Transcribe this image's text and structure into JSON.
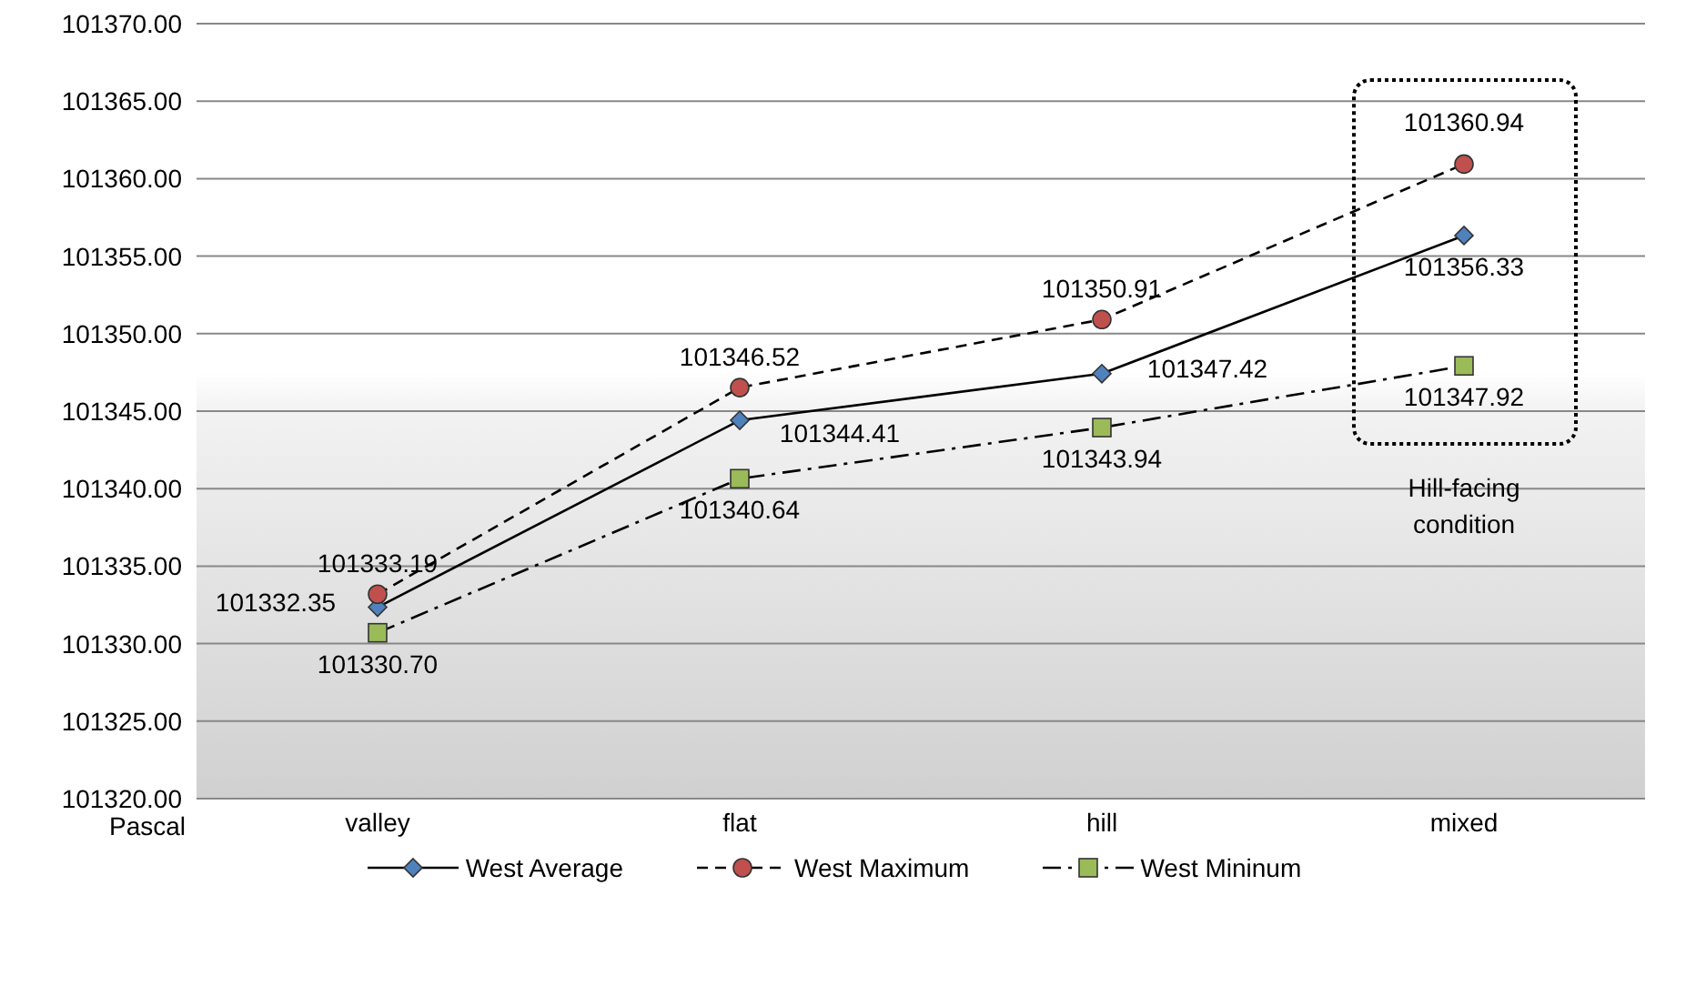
{
  "chart_data": {
    "type": "line",
    "ylabel": "Pascal",
    "categories": [
      "valley",
      "flat",
      "hill",
      "mixed"
    ],
    "series": [
      {
        "name": "West Average",
        "color": "#4f81bd",
        "marker": "diamond",
        "line_style": "solid",
        "values": [
          101332.35,
          101344.41,
          101347.42,
          101356.33
        ],
        "value_labels": [
          "101332.35",
          "101344.41",
          "101347.42",
          "101356.33"
        ]
      },
      {
        "name": "West Maximum",
        "color": "#c0504d",
        "marker": "circle",
        "line_style": "dashed",
        "values": [
          101333.19,
          101346.52,
          101350.91,
          101360.94
        ],
        "value_labels": [
          "101333.19",
          "101346.52",
          "101350.91",
          "101360.94"
        ]
      },
      {
        "name": "West Mininum",
        "color": "#9bbb59",
        "marker": "square",
        "line_style": "dashdot",
        "values": [
          101330.7,
          101340.64,
          101343.94,
          101347.92
        ],
        "value_labels": [
          "101330.70",
          "101340.64",
          "101343.94",
          "101347.92"
        ]
      }
    ],
    "ylim": [
      101320,
      101370
    ],
    "yticks": [
      {
        "value": 101320,
        "label": "101320.00"
      },
      {
        "value": 101325,
        "label": "101325.00"
      },
      {
        "value": 101330,
        "label": "101330.00"
      },
      {
        "value": 101335,
        "label": "101335.00"
      },
      {
        "value": 101340,
        "label": "101340.00"
      },
      {
        "value": 101345,
        "label": "101345.00"
      },
      {
        "value": 101350,
        "label": "101350.00"
      },
      {
        "value": 101355,
        "label": "101355.00"
      },
      {
        "value": 101360,
        "label": "101360.00"
      },
      {
        "value": 101365,
        "label": "101365.00"
      },
      {
        "value": 101370,
        "label": "101370.00"
      }
    ],
    "grid": "y",
    "legend": "bottom",
    "annotations": [
      "Hill-facing condition"
    ]
  }
}
